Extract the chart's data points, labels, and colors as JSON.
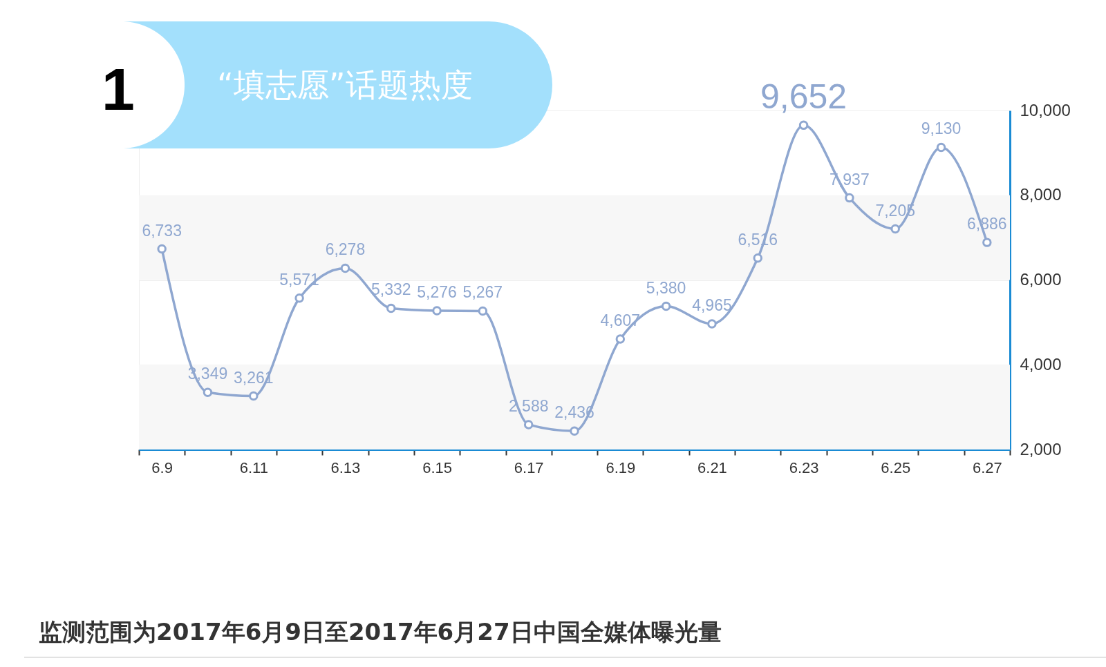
{
  "chart_data": {
    "type": "line",
    "title": "“填志愿”话题热度",
    "categories": [
      "6.9",
      null,
      "6.11",
      null,
      "6.13",
      null,
      "6.15",
      null,
      "6.17",
      null,
      "6.19",
      null,
      "6.21",
      null,
      "6.23",
      null,
      "6.25",
      null,
      "6.27"
    ],
    "series": [
      {
        "color": "#8fa7d0",
        "values": [
          6733,
          3349,
          3261,
          5571,
          6278,
          5332,
          5276,
          5267,
          2588,
          2436,
          4607,
          5380,
          4965,
          6516,
          9652,
          7937,
          7205,
          9130,
          6886
        ],
        "value_labels": [
          "6,733",
          "3,349",
          "3,261",
          "5,571",
          "6,278",
          "5,332",
          "5,276",
          "5,267",
          "2,588",
          "2,436",
          "4,607",
          "5,380",
          "4,965",
          "6,516",
          "9,652",
          "7,937",
          "7,205",
          "9,130",
          "6,886"
        ]
      }
    ],
    "ylim": [
      2000,
      10000
    ],
    "yticks": [
      {
        "value": 2000,
        "label": "2,000"
      },
      {
        "value": 4000,
        "label": "4,000"
      },
      {
        "value": 6000,
        "label": "6,000"
      },
      {
        "value": 8000,
        "label": "8,000"
      },
      {
        "value": 10000,
        "label": "10,000"
      }
    ],
    "grid": "y",
    "marker": "circle",
    "line_style": "solid",
    "annotations": [
      "1",
      "监测范围为2017年6月9日至2017年6月27日中国全媒体曝光量"
    ]
  }
}
